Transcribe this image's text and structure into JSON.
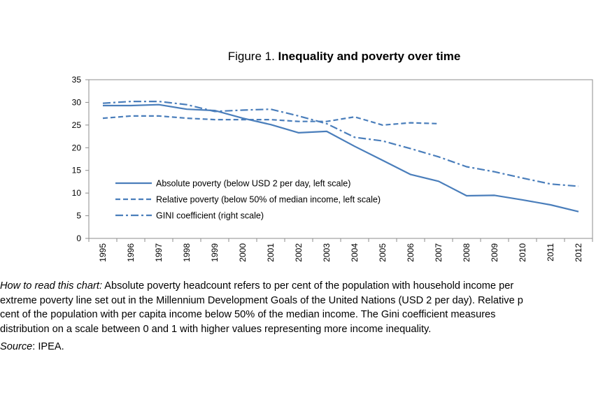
{
  "chart_data": {
    "type": "line",
    "title_prefix": "Figure 1. ",
    "title": "Inequality and poverty over time",
    "x": [
      "1995",
      "1996",
      "1997",
      "1998",
      "1999",
      "2000",
      "2001",
      "2002",
      "2003",
      "2004",
      "2005",
      "2006",
      "2007",
      "2008",
      "2009",
      "2010",
      "2011",
      "2012"
    ],
    "ylim": [
      0,
      35
    ],
    "yticks": [
      0,
      5,
      10,
      15,
      20,
      25,
      30,
      35
    ],
    "grid": false,
    "legend_position": "lower-left",
    "colors": {
      "series": "#4a7ebb"
    },
    "series": [
      {
        "name": "Absolute poverty (below USD 2 per day, left scale)",
        "style": "solid",
        "values": [
          29.3,
          29.3,
          29.5,
          28.5,
          28.2,
          26.5,
          25.1,
          23.3,
          23.6,
          20.3,
          17.2,
          14.1,
          12.6,
          9.4,
          9.5,
          8.5,
          7.4,
          5.9
        ]
      },
      {
        "name": "Relative poverty (below 50% of median income, left scale)",
        "style": "dashed",
        "values": [
          26.5,
          27.0,
          27.0,
          26.5,
          26.2,
          26.2,
          26.2,
          25.8,
          25.8,
          26.8,
          25.0,
          25.5,
          25.3,
          null,
          null,
          null,
          null,
          null
        ]
      },
      {
        "name": "GINI coefficient (right scale)",
        "style": "dashdot",
        "values": [
          29.8,
          30.2,
          30.2,
          29.5,
          28.0,
          28.3,
          28.5,
          27.0,
          25.3,
          22.3,
          21.5,
          19.8,
          18.0,
          15.8,
          14.7,
          13.3,
          12.0,
          11.5
        ]
      }
    ]
  },
  "note": {
    "label": "How to read this chart:",
    "lines": [
      " Absolute poverty headcount refers to per cent of the population with household income per",
      "extreme poverty line set out in the Millennium Development Goals of the United Nations (USD 2 per day). Relative p",
      "cent of the population with per capita income below 50% of the median income. The Gini coefficient measures",
      "distribution on a scale between 0 and 1 with higher values representing more income inequality."
    ]
  },
  "source": {
    "label": "Source",
    "text": ": IPEA."
  }
}
